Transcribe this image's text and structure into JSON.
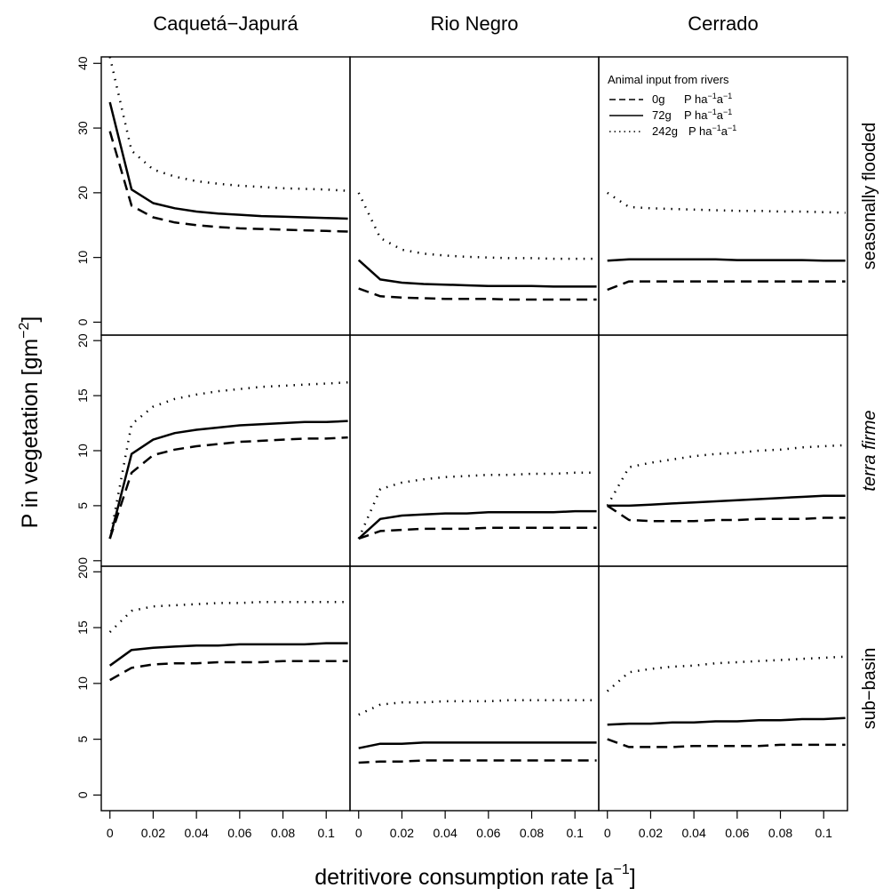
{
  "chart_data": {
    "type": "line",
    "ylabel": "P in vegetation [gm",
    "ylabel_sup": "−2",
    "ylabel_end": "]",
    "xlabel": "detritivore consumption rate [a",
    "xlabel_sup": "−1",
    "xlabel_end": "]",
    "columns": [
      "Caquetá−Japurá",
      "Rio Negro",
      "Cerrado"
    ],
    "rows": [
      {
        "label": "seasonally flooded",
        "italic": false,
        "ylim": [
          -2,
          41
        ],
        "yticks": [
          0,
          10,
          20,
          30,
          40
        ],
        "tick_labels": [
          "0",
          "10",
          "20",
          "30",
          "40"
        ]
      },
      {
        "label": "terra firme",
        "italic": true,
        "ylim": [
          -0.5,
          20.5
        ],
        "yticks": [
          0,
          5,
          10,
          15,
          20
        ],
        "tick_labels": [
          "0",
          "5",
          "10",
          "15",
          "20"
        ]
      },
      {
        "label": "sub−basin",
        "italic": false,
        "ylim": [
          -1.4,
          20.5
        ],
        "yticks": [
          0,
          5,
          10,
          15,
          20
        ],
        "tick_labels": [
          "0",
          "5",
          "10",
          "15",
          "20"
        ]
      }
    ],
    "xlim": [
      -0.004,
      0.111
    ],
    "xticks": [
      0,
      0.02,
      0.04,
      0.06,
      0.08,
      0.1
    ],
    "xtick_labels": [
      "0",
      "0.02",
      "0.04",
      "0.06",
      "0.08",
      "0.1"
    ],
    "x": [
      0,
      0.01,
      0.02,
      0.03,
      0.04,
      0.05,
      0.06,
      0.07,
      0.08,
      0.09,
      0.1,
      0.11
    ],
    "legend": {
      "title": "Animal input from rivers",
      "placement": "top-right of the upper-right panel",
      "entries": [
        {
          "key": "0g",
          "unit": "P ha",
          "sup1": "−1",
          "mid": "a",
          "sup2": "−1",
          "dash": "dashed"
        },
        {
          "key": "72g",
          "unit": "P ha",
          "sup1": "−1",
          "mid": "a",
          "sup2": "−1",
          "dash": "solid"
        },
        {
          "key": "242g",
          "unit": "P ha",
          "sup1": "−1",
          "mid": "a",
          "sup2": "−1",
          "dash": "dotted"
        }
      ]
    },
    "series": {
      "0-0": {
        "0g": [
          29.5,
          18.0,
          16.2,
          15.4,
          15.0,
          14.7,
          14.5,
          14.4,
          14.3,
          14.2,
          14.1,
          14.0
        ],
        "72g": [
          34.0,
          20.5,
          18.4,
          17.6,
          17.1,
          16.8,
          16.6,
          16.4,
          16.3,
          16.2,
          16.1,
          16.0
        ],
        "242g": [
          41.0,
          26.5,
          23.6,
          22.5,
          21.8,
          21.4,
          21.1,
          20.9,
          20.7,
          20.6,
          20.5,
          20.3
        ]
      },
      "0-1": {
        "0g": [
          5.2,
          4.0,
          3.8,
          3.7,
          3.6,
          3.6,
          3.6,
          3.5,
          3.5,
          3.5,
          3.5,
          3.5
        ],
        "72g": [
          9.6,
          6.6,
          6.1,
          5.9,
          5.8,
          5.7,
          5.6,
          5.6,
          5.6,
          5.5,
          5.5,
          5.5
        ],
        "242g": [
          20.0,
          13.0,
          11.2,
          10.6,
          10.3,
          10.1,
          10.0,
          9.9,
          9.9,
          9.8,
          9.8,
          9.8
        ]
      },
      "0-2": {
        "0g": [
          5.0,
          6.3,
          6.3,
          6.3,
          6.3,
          6.3,
          6.3,
          6.3,
          6.3,
          6.3,
          6.3,
          6.3
        ],
        "72g": [
          9.5,
          9.7,
          9.7,
          9.7,
          9.7,
          9.7,
          9.6,
          9.6,
          9.6,
          9.6,
          9.5,
          9.5
        ],
        "242g": [
          20.0,
          17.8,
          17.6,
          17.5,
          17.4,
          17.3,
          17.2,
          17.2,
          17.1,
          17.1,
          17.0,
          16.9
        ]
      },
      "1-0": {
        "0g": [
          2.0,
          8.0,
          9.6,
          10.1,
          10.4,
          10.6,
          10.8,
          10.9,
          11.0,
          11.1,
          11.1,
          11.2
        ],
        "72g": [
          2.0,
          9.7,
          11.0,
          11.6,
          11.9,
          12.1,
          12.3,
          12.4,
          12.5,
          12.6,
          12.6,
          12.7
        ],
        "242g": [
          2.0,
          12.4,
          14.0,
          14.7,
          15.1,
          15.4,
          15.6,
          15.8,
          15.9,
          16.0,
          16.1,
          16.2
        ]
      },
      "1-1": {
        "0g": [
          2.0,
          2.7,
          2.8,
          2.9,
          2.9,
          2.9,
          3.0,
          3.0,
          3.0,
          3.0,
          3.0,
          3.0
        ],
        "72g": [
          2.0,
          3.8,
          4.1,
          4.2,
          4.3,
          4.3,
          4.4,
          4.4,
          4.4,
          4.4,
          4.5,
          4.5
        ],
        "242g": [
          2.0,
          6.5,
          7.1,
          7.4,
          7.6,
          7.7,
          7.8,
          7.8,
          7.9,
          7.9,
          8.0,
          8.0
        ]
      },
      "1-2": {
        "0g": [
          5.0,
          3.7,
          3.6,
          3.6,
          3.6,
          3.7,
          3.7,
          3.8,
          3.8,
          3.8,
          3.9,
          3.9
        ],
        "72g": [
          5.0,
          5.0,
          5.1,
          5.2,
          5.3,
          5.4,
          5.5,
          5.6,
          5.7,
          5.8,
          5.9,
          5.9
        ],
        "242g": [
          5.0,
          8.5,
          8.9,
          9.2,
          9.5,
          9.7,
          9.8,
          10.0,
          10.1,
          10.3,
          10.4,
          10.5
        ]
      },
      "2-0": {
        "0g": [
          10.3,
          11.4,
          11.7,
          11.8,
          11.8,
          11.9,
          11.9,
          11.9,
          12.0,
          12.0,
          12.0,
          12.0
        ],
        "72g": [
          11.6,
          13.0,
          13.2,
          13.3,
          13.4,
          13.4,
          13.5,
          13.5,
          13.5,
          13.5,
          13.6,
          13.6
        ],
        "242g": [
          14.6,
          16.5,
          16.9,
          17.0,
          17.1,
          17.2,
          17.2,
          17.3,
          17.3,
          17.3,
          17.3,
          17.3
        ]
      },
      "2-1": {
        "0g": [
          2.9,
          3.0,
          3.0,
          3.1,
          3.1,
          3.1,
          3.1,
          3.1,
          3.1,
          3.1,
          3.1,
          3.1
        ],
        "72g": [
          4.2,
          4.6,
          4.6,
          4.7,
          4.7,
          4.7,
          4.7,
          4.7,
          4.7,
          4.7,
          4.7,
          4.7
        ],
        "242g": [
          7.2,
          8.1,
          8.3,
          8.3,
          8.4,
          8.4,
          8.4,
          8.5,
          8.5,
          8.5,
          8.5,
          8.5
        ]
      },
      "2-2": {
        "0g": [
          5.0,
          4.3,
          4.3,
          4.3,
          4.4,
          4.4,
          4.4,
          4.4,
          4.5,
          4.5,
          4.5,
          4.5
        ],
        "72g": [
          6.3,
          6.4,
          6.4,
          6.5,
          6.5,
          6.6,
          6.6,
          6.7,
          6.7,
          6.8,
          6.8,
          6.9
        ],
        "242g": [
          9.3,
          11.0,
          11.3,
          11.5,
          11.6,
          11.8,
          11.9,
          12.0,
          12.1,
          12.2,
          12.3,
          12.4
        ]
      }
    }
  }
}
